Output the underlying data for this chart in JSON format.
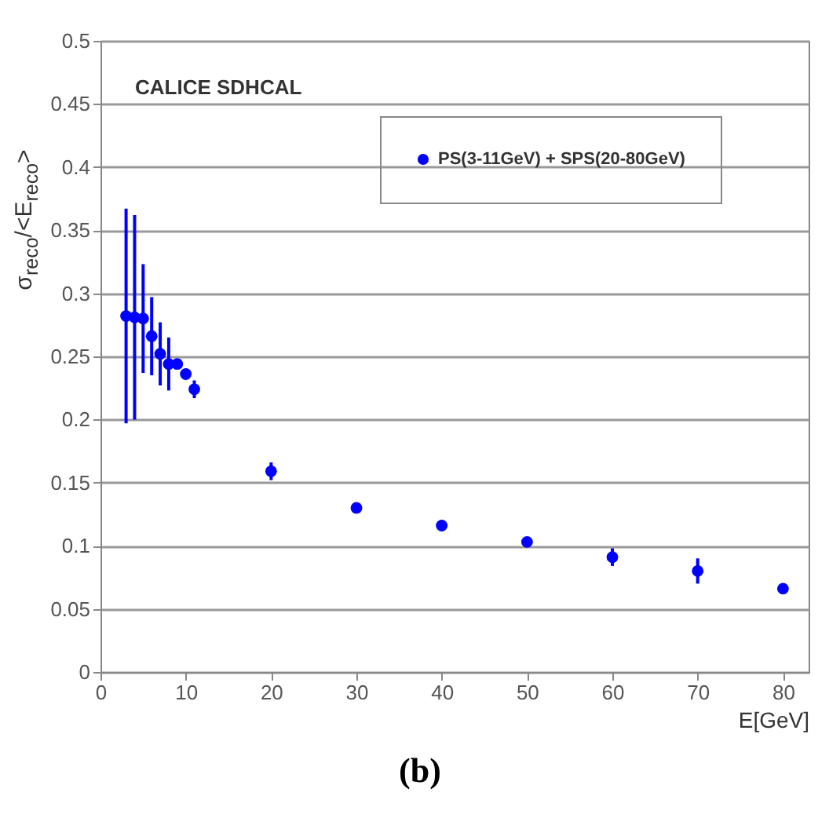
{
  "chart_data": {
    "type": "scatter",
    "xlabel": "E[GeV]",
    "ylabel": "σ$_{reco}$/<E$_{reco}$>",
    "annotations": [
      "CALICE SDHCAL",
      "(b)"
    ],
    "x": [
      3,
      4,
      5,
      6,
      7,
      8,
      9,
      10,
      11,
      20,
      30,
      40,
      50,
      60,
      70,
      80
    ],
    "series": [
      {
        "name": "PS(3-11GeV) + SPS(20-80GeV)",
        "color": "#0000ff",
        "values": [
          0.282,
          0.281,
          0.28,
          0.266,
          0.252,
          0.244,
          0.244,
          0.236,
          0.224,
          0.159,
          0.13,
          0.116,
          0.103,
          0.091,
          0.08,
          0.066
        ],
        "errors": [
          0.085,
          0.081,
          0.043,
          0.031,
          0.025,
          0.021,
          null,
          null,
          0.007,
          0.007,
          null,
          null,
          null,
          0.007,
          0.01,
          null
        ]
      }
    ],
    "xlim": [
      0,
      83
    ],
    "xticks": [
      0,
      10,
      20,
      30,
      40,
      50,
      60,
      70,
      80
    ],
    "ylim": [
      0,
      0.5
    ],
    "yticks": [
      0,
      0.05,
      0.1,
      0.15,
      0.2,
      0.25,
      0.3,
      0.35,
      0.4,
      0.45,
      0.5
    ],
    "grid": "y",
    "legend": "top right",
    "marker": "circle"
  }
}
